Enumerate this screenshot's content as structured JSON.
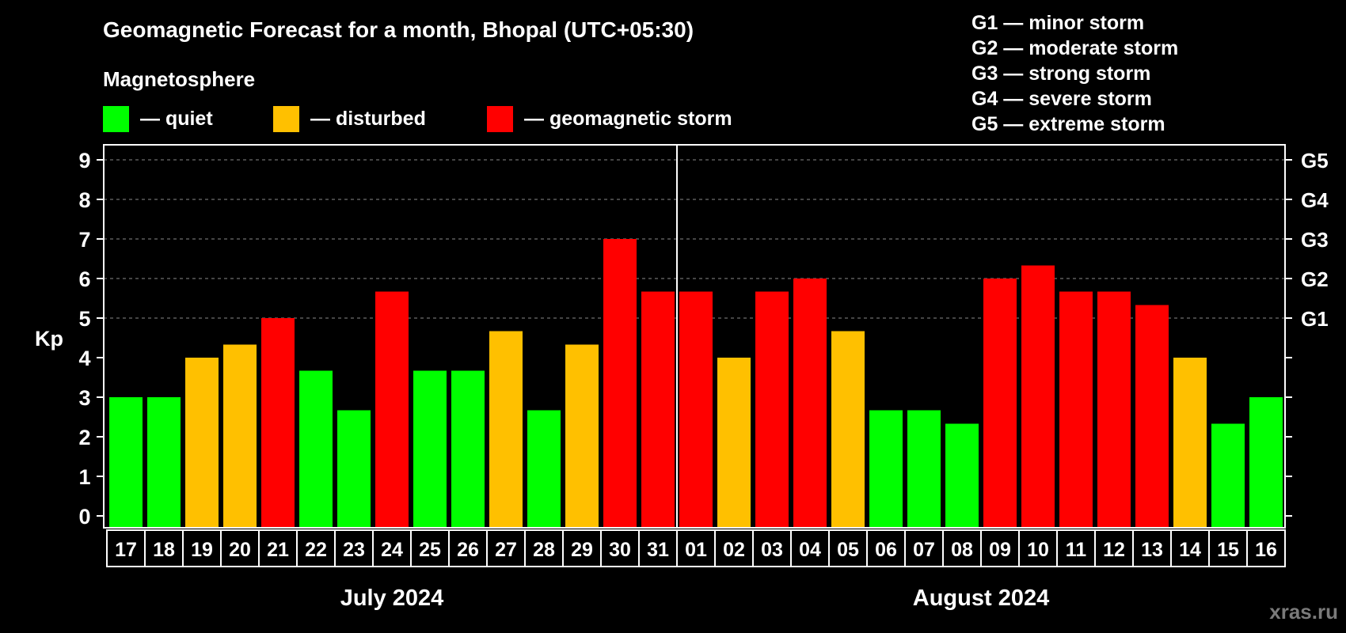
{
  "chart_data": {
    "type": "bar",
    "title": "Geomagnetic Forecast for a month, Bhopal (UTC+05:30)",
    "subtitle": "Magnetosphere",
    "ylabel": "Kp",
    "ylim": [
      0,
      9
    ],
    "yticks": [
      "0",
      "1",
      "2",
      "3",
      "4",
      "5",
      "6",
      "7",
      "8",
      "9"
    ],
    "grid": true,
    "categories": [
      "17",
      "18",
      "19",
      "20",
      "21",
      "22",
      "23",
      "24",
      "25",
      "26",
      "27",
      "28",
      "29",
      "30",
      "31",
      "01",
      "02",
      "03",
      "04",
      "05",
      "06",
      "07",
      "08",
      "09",
      "10",
      "11",
      "12",
      "13",
      "14",
      "15",
      "16"
    ],
    "values": [
      3.0,
      3.0,
      4.0,
      4.33,
      5.0,
      3.67,
      2.67,
      5.67,
      3.67,
      3.67,
      4.67,
      2.67,
      4.33,
      7.0,
      5.67,
      5.67,
      4.0,
      5.67,
      6.0,
      4.67,
      2.67,
      2.67,
      2.33,
      6.0,
      6.33,
      5.67,
      5.67,
      5.33,
      4.0,
      2.33,
      3.0
    ],
    "status": [
      "quiet",
      "quiet",
      "disturbed",
      "disturbed",
      "storm",
      "quiet",
      "quiet",
      "storm",
      "quiet",
      "quiet",
      "disturbed",
      "quiet",
      "disturbed",
      "storm",
      "storm",
      "storm",
      "disturbed",
      "storm",
      "storm",
      "disturbed",
      "quiet",
      "quiet",
      "quiet",
      "storm",
      "storm",
      "storm",
      "storm",
      "storm",
      "disturbed",
      "quiet",
      "quiet"
    ],
    "months": [
      {
        "label": "July 2024",
        "start": 0,
        "end": 14
      },
      {
        "label": "August 2024",
        "start": 15,
        "end": 30
      }
    ],
    "legend": [
      {
        "key": "quiet",
        "label": "— quiet",
        "color": "#00ff00"
      },
      {
        "key": "disturbed",
        "label": "— disturbed",
        "color": "#ffc000"
      },
      {
        "key": "storm",
        "label": "— geomagnetic storm",
        "color": "#ff0000"
      }
    ],
    "g_levels": [
      {
        "label": "G1",
        "kp": 5
      },
      {
        "label": "G2",
        "kp": 6
      },
      {
        "label": "G3",
        "kp": 7
      },
      {
        "label": "G4",
        "kp": 8
      },
      {
        "label": "G5",
        "kp": 9
      }
    ],
    "g_legend": [
      "G1 — minor storm",
      "G2 — moderate storm",
      "G3 — strong storm",
      "G4 — severe storm",
      "G5 — extreme storm"
    ]
  },
  "watermark": "xras.ru"
}
